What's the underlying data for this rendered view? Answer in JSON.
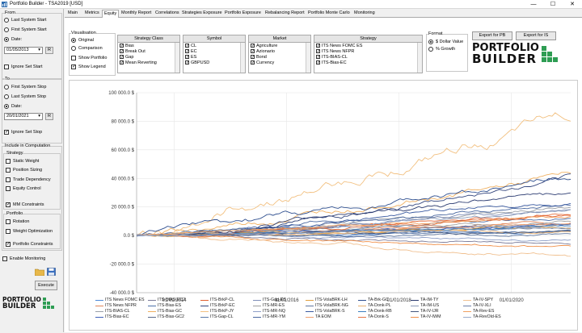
{
  "window": {
    "title": "Portfolio Builder - TSA2019 [USD]",
    "min_glyph": "—",
    "max_glyph": "☐",
    "close_glyph": "✕",
    "icon": "app-icon"
  },
  "left": {
    "from_label": "From",
    "from_options": [
      "Last System Start",
      "First System Start",
      "Date:"
    ],
    "from_selected": 2,
    "from_date": "01/05/2013",
    "date_dropdown_glyph": "▾",
    "reset_label": "R",
    "ignore_start_label": "Ignore Set Start",
    "ignore_start_checked": false,
    "to_label": "To",
    "to_options": [
      "First System Stop",
      "Last System Stop",
      "Date:"
    ],
    "to_selected": 2,
    "to_date": "20/01/2021",
    "ignore_stop_label": "Ignore Set Stop",
    "ignore_stop_checked": true,
    "include_label": "Include in Computation",
    "strategy_label": "Strategy",
    "strategy_options": [
      {
        "label": "Static Weight",
        "checked": false
      },
      {
        "label": "Position Sizing",
        "checked": false
      },
      {
        "label": "Trade Dependency",
        "checked": false
      },
      {
        "label": "Equity Control",
        "checked": false
      }
    ],
    "mm_label": "MM Constraints",
    "mm_checked": true,
    "portfolio_label": "Portfolio",
    "portfolio_options": [
      {
        "label": "Rotation",
        "checked": false
      },
      {
        "label": "Weight Optimization",
        "checked": false
      }
    ],
    "pconstraints_label": "Portfolio Constraints",
    "pconstraints_checked": true,
    "monitoring_label": "Enable Monitoring",
    "monitoring_checked": false,
    "folder_icon": "folder-icon",
    "save_icon": "save-icon",
    "execute_label": "Execute",
    "logo_top": "PORTFOLIO",
    "logo_bottom": "BUILDER"
  },
  "tabs": [
    "Main",
    "Metrics",
    "Monthly Report",
    "Correlations",
    "Strategies Exposure",
    "Portfolio Exposure",
    "Rebalancing Report",
    "Portfolio Monte Carlo",
    "Monitoring"
  ],
  "active_tab": "Equity",
  "visualisation": {
    "label": "Visualisation",
    "options": [
      "Original",
      "Comparison"
    ],
    "selected": 0,
    "show_portfolio": "Show Portfolio",
    "show_portfolio_checked": false,
    "show_legend": "Show Legend",
    "show_legend_checked": true
  },
  "filters": [
    {
      "header": "Strategy Class",
      "items": [
        "Bias",
        "Break Out",
        "Gap",
        "Mean Reverting"
      ]
    },
    {
      "header": "Symbol",
      "items": [
        "CL",
        "EC",
        "ES",
        "GBPUSD"
      ]
    },
    {
      "header": "Market",
      "items": [
        "Agriculture",
        "Azionario",
        "Bond",
        "Currency"
      ]
    },
    {
      "header": "Strategy",
      "items": [
        "ITS News FOMC ES",
        "ITS News NFPR",
        "ITS-BIAS-CL",
        "ITS-Bias-EC"
      ]
    }
  ],
  "format": {
    "label": "Format",
    "options": [
      "$ Dollar Value",
      "% Growth"
    ],
    "selected": 0
  },
  "buttons": {
    "export_pb": "Export for PB",
    "export_is": "Export for IS"
  },
  "colors": {
    "accent": "#2e9d53"
  },
  "chart_data": {
    "type": "line",
    "y_ticks": [
      "100 000.0 $",
      "80 000.0 $",
      "60 000.0 $",
      "40 000.0 $",
      "20 000.0 $",
      "0.0 $",
      "-20 000.0 $",
      "-40 000.0 $"
    ],
    "ylim": [
      -40000,
      100000
    ],
    "x_ticks": [
      "01/01/2014",
      "01/01/2016",
      "01/01/2018",
      "01/01/2020"
    ],
    "xlim": [
      "2013-05-01",
      "2021-01-20"
    ],
    "grid": true,
    "legend_position": "bottom",
    "series": [
      {
        "name": "ITS News FOMC ES",
        "color": "#4d88d6",
        "end": 3000
      },
      {
        "name": "ITS News NFPR",
        "color": "#e0855a",
        "end": 10000
      },
      {
        "name": "ITS-BIAS-CL",
        "color": "#9aa0a8",
        "end": 20000
      },
      {
        "name": "ITS-Bias-EC",
        "color": "#3d5fb8",
        "end": 8000
      },
      {
        "name": "ITS-BIAS-EC2",
        "color": "#7d7d9a",
        "end": -5000
      },
      {
        "name": "ITS-Bias-ES",
        "color": "#4c6fa8",
        "end": 12000
      },
      {
        "name": "ITS-Bias-GC",
        "color": "#f0b060",
        "end": 42000
      },
      {
        "name": "ITS-Bias-GC2",
        "color": "#5a6a8a",
        "end": 5000
      },
      {
        "name": "ITS-BrkP-CL",
        "color": "#e06030",
        "end": 15000
      },
      {
        "name": "ITS-BrkP-EC",
        "color": "#33457d",
        "end": 38000
      },
      {
        "name": "ITS-BrkP-JY",
        "color": "#f2c080",
        "end": 82000
      },
      {
        "name": "ITS-Gap-CL",
        "color": "#5a78a8",
        "end": 2000
      },
      {
        "name": "ITS-Gap-ES",
        "color": "#7f8fb8",
        "end": 18000
      },
      {
        "name": "ITS-MR-ES",
        "color": "#a0a0a0",
        "end": 11000
      },
      {
        "name": "ITS-MR-NQ",
        "color": "#8fa0c8",
        "end": -3000
      },
      {
        "name": "ITS-MR-YM",
        "color": "#4a68a0",
        "end": 22000
      },
      {
        "name": "ITS-VolaBRK-LH",
        "color": "#e0a040",
        "end": 6000
      },
      {
        "name": "ITS-VolaBRK-NG",
        "color": "#5f77a0",
        "end": 1000
      },
      {
        "name": "ITS-VolaBRK-S",
        "color": "#3a5aa0",
        "end": 25000
      },
      {
        "name": "TA EOM",
        "color": "#f0a070",
        "end": 9000
      },
      {
        "name": "TA-Brk-GC",
        "color": "#2f4f8f",
        "end": 40000
      },
      {
        "name": "TA-Donk-PL",
        "color": "#e8b070",
        "end": 4000
      },
      {
        "name": "TA-Donk-RB",
        "color": "#3c7fc0",
        "end": 7000
      },
      {
        "name": "TA-Donk-S",
        "color": "#e57545",
        "end": 14000
      },
      {
        "name": "TA-IM-TY",
        "color": "#2a3a70",
        "end": 30000
      },
      {
        "name": "TA-IM-US",
        "color": "#8a9ab8",
        "end": 16000
      },
      {
        "name": "TA-IV-IJR",
        "color": "#44577d",
        "end": 3000
      },
      {
        "name": "TA-IV-IWM",
        "color": "#f0904a",
        "end": -8000
      },
      {
        "name": "TA-IV-SPY",
        "color": "#f0c090",
        "end": -16000
      },
      {
        "name": "TA-IV-XLI",
        "color": "#6c7fa8",
        "end": 8000
      },
      {
        "name": "TA-Rev-ES",
        "color": "#f0a060",
        "end": 13000
      },
      {
        "name": "TA-RevOld-ES",
        "color": "#9aaccc",
        "end": 5000
      }
    ]
  }
}
